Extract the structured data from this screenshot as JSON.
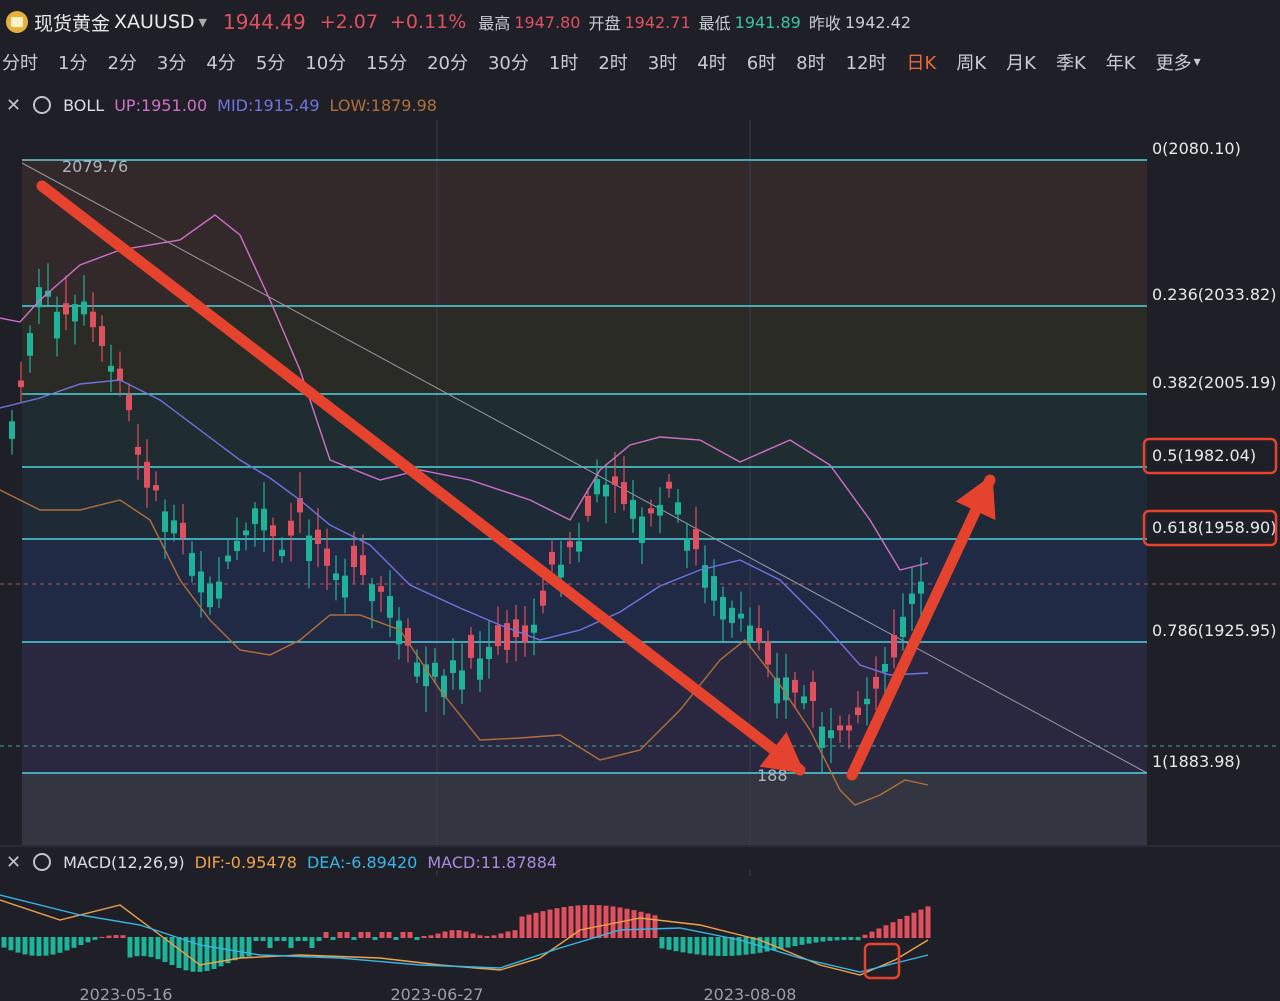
{
  "header": {
    "symbol_name": "现货黄金",
    "symbol": "XAUUSD",
    "price": "1944.49",
    "change": "+2.07",
    "change_pct": "+0.11%",
    "high_label": "最高",
    "high": "1947.80",
    "open_label": "开盘",
    "open": "1942.71",
    "low_label": "最低",
    "low": "1941.89",
    "prev_label": "昨收",
    "prev": "1942.42"
  },
  "timeframes": [
    "分时",
    "1分",
    "2分",
    "3分",
    "4分",
    "5分",
    "10分",
    "15分",
    "20分",
    "30分",
    "1时",
    "2时",
    "3时",
    "4时",
    "6时",
    "8时",
    "12时",
    "日K",
    "周K",
    "月K",
    "季K",
    "年K",
    "更多"
  ],
  "active_timeframe": "日K",
  "boll": {
    "name": "BOLL",
    "up": "UP:1951.00",
    "mid": "MID:1915.49",
    "low": "LOW:1879.98"
  },
  "macd": {
    "name": "MACD(12,26,9)",
    "dif": "DIF:-0.95478",
    "dea": "DEA:-6.89420",
    "macd": "MACD:11.87884"
  },
  "fib_levels": [
    {
      "label": "0(2080.10)",
      "highlight": false
    },
    {
      "label": "0.236(2033.82)",
      "highlight": false
    },
    {
      "label": "0.382(2005.19)",
      "highlight": false
    },
    {
      "label": "0.5(1982.04)",
      "highlight": true
    },
    {
      "label": "0.618(1958.90)",
      "highlight": true
    },
    {
      "label": "0.786(1925.95)",
      "highlight": false
    },
    {
      "label": "1(1883.98)",
      "highlight": false
    }
  ],
  "annotations": {
    "high_price": "2079.76",
    "low_price": "188"
  },
  "dates": [
    "2023-05-16",
    "2023-06-27",
    "2023-08-08"
  ],
  "colors": {
    "up": "#e0505e",
    "down": "#1fb39a",
    "fib_line": "#4fd3dd",
    "boll_up": "#d070c8",
    "boll_mid": "#6f74e0",
    "boll_low": "#b0703c",
    "arrow": "#e6432e",
    "dif": "#f0a24a",
    "dea": "#38b6e8",
    "accent": "#ea6a3a"
  }
}
